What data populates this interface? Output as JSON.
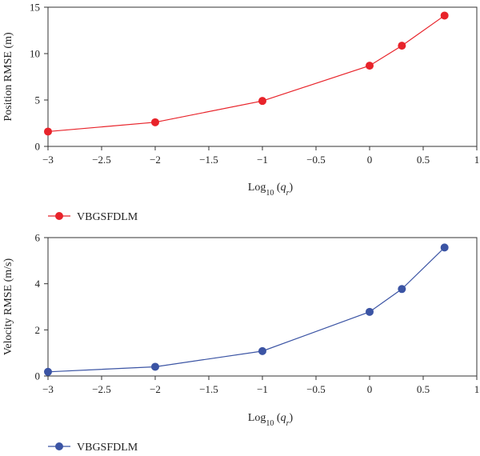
{
  "chart_data": [
    {
      "type": "line",
      "x": [
        -3,
        -2,
        -1,
        0,
        0.301,
        0.699
      ],
      "series": [
        {
          "name": "VBGSFDLM",
          "values": [
            1.6,
            2.6,
            4.9,
            8.7,
            10.85,
            14.1
          ],
          "color": "#e8232a"
        }
      ],
      "xlabel": {
        "base": "Log",
        "sub": "10",
        "open": " (",
        "var": "q",
        "varsub": "r",
        "close": ")"
      },
      "ylabel": "Position RMSE (m)",
      "xlim": [
        -3,
        1
      ],
      "ylim": [
        0,
        15
      ],
      "xticks": [
        -3,
        -2.5,
        -2,
        -1.5,
        -1,
        -0.5,
        0,
        0.5,
        1
      ],
      "xtick_labels": [
        "−3",
        "−2.5",
        "−2",
        "−1.5",
        "−1",
        "−0.5",
        "0",
        "0.5",
        "1"
      ],
      "yticks": [
        0,
        5,
        10,
        15
      ],
      "ytick_labels": [
        "0",
        "5",
        "10",
        "15"
      ],
      "grid": false,
      "legend": "bottom-left"
    },
    {
      "type": "line",
      "x": [
        -3,
        -2,
        -1,
        0,
        0.301,
        0.699
      ],
      "series": [
        {
          "name": "VBGSFDLM",
          "values": [
            0.18,
            0.4,
            1.08,
            2.78,
            3.77,
            5.57
          ],
          "color": "#3b54a4"
        }
      ],
      "xlabel": {
        "base": "Log",
        "sub": "10",
        "open": " (",
        "var": "q",
        "varsub": "r",
        "close": ")"
      },
      "ylabel": "Velocity RMSE (m/s)",
      "xlim": [
        -3,
        1
      ],
      "ylim": [
        0,
        6
      ],
      "xticks": [
        -3,
        -2.5,
        -2,
        -1.5,
        -1,
        -0.5,
        0,
        0.5,
        1
      ],
      "xtick_labels": [
        "−3",
        "−2.5",
        "−2",
        "−1.5",
        "−1",
        "−0.5",
        "0",
        "0.5",
        "1"
      ],
      "yticks": [
        0,
        2,
        4,
        6
      ],
      "ytick_labels": [
        "0",
        "2",
        "4",
        "6"
      ],
      "grid": false,
      "legend": "bottom-left"
    }
  ]
}
